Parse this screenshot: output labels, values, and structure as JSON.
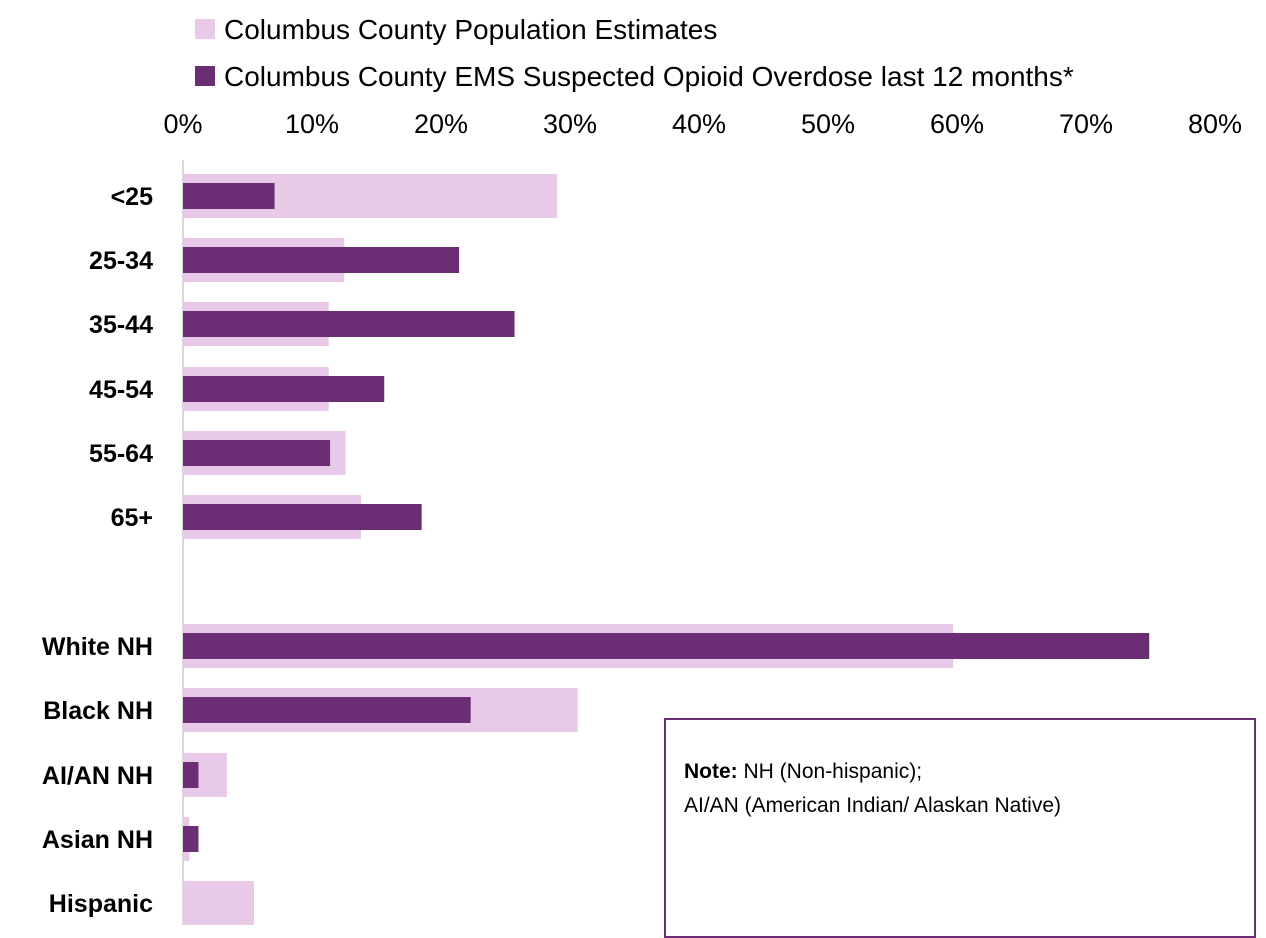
{
  "chart_data": {
    "type": "bar",
    "orientation": "horizontal",
    "legend": [
      {
        "label": "Columbus County Population Estimates",
        "color": "#e8cae8"
      },
      {
        "label": "Columbus County EMS Suspected Opioid Overdose last 12 months*",
        "color": "#6b2d73"
      }
    ],
    "xlim": [
      0,
      80
    ],
    "xticks": [
      "0%",
      "10%",
      "20%",
      "30%",
      "40%",
      "50%",
      "60%",
      "70%",
      "80%"
    ],
    "categories": [
      "<25",
      "25-34",
      "35-44",
      "45-54",
      "55-64",
      "65+",
      "White NH",
      "Black NH",
      "AI/AN NH",
      "Asian NH",
      "Hispanic"
    ],
    "series": [
      {
        "name": "Columbus County Population Estimates",
        "values": [
          29.0,
          12.5,
          11.3,
          11.3,
          12.6,
          13.8,
          59.7,
          30.6,
          3.4,
          0.5,
          5.5
        ]
      },
      {
        "name": "Columbus County EMS Suspected Opioid Overdose last 12 months*",
        "values": [
          7.1,
          21.4,
          25.7,
          15.6,
          11.4,
          18.5,
          74.9,
          22.3,
          1.2,
          1.2,
          0
        ]
      }
    ]
  },
  "note": {
    "label": "Note:",
    "line1": " NH (Non-hispanic);",
    "line2": "AI/AN (American Indian/ Alaskan Native)"
  },
  "colors": {
    "population": "#e8cae8",
    "ems": "#6b2d73",
    "note_border": "#6b2d73",
    "axis": "#d9d9d9"
  }
}
